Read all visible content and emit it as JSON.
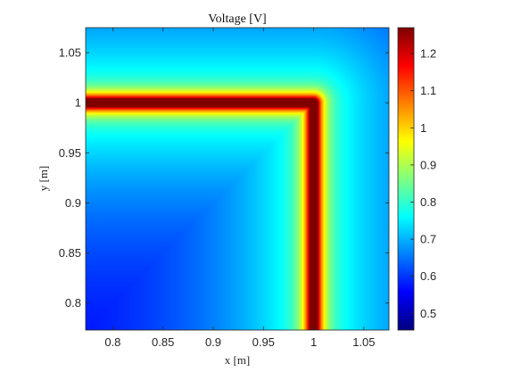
{
  "chart_data": {
    "type": "heatmap",
    "title": "Voltage [V]",
    "xlabel": "x [m]",
    "ylabel": "y [m]",
    "xlim": [
      0.773,
      1.075
    ],
    "ylim": [
      0.773,
      1.075
    ],
    "x_ticks": [
      0.8,
      0.85,
      0.9,
      0.95,
      1,
      1.05
    ],
    "x_tick_labels": [
      "0.8",
      "0.85",
      "0.9",
      "0.95",
      "1",
      "1.05"
    ],
    "y_ticks": [
      0.8,
      0.85,
      0.9,
      0.95,
      1,
      1.05
    ],
    "y_tick_labels": [
      "0.8",
      "0.85",
      "0.9",
      "0.95",
      "1",
      "1.05"
    ],
    "colorbar": {
      "limits": [
        0.455,
        1.27
      ],
      "ticks": [
        0.5,
        0.6,
        0.7,
        0.8,
        0.9,
        1,
        1.1,
        1.2
      ],
      "tick_labels": [
        "0.5",
        "0.6",
        "0.7",
        "0.8",
        "0.9",
        "1",
        "1.1",
        "1.2"
      ],
      "colormap": "jet"
    },
    "field": {
      "description_of_pattern": "L-shaped conductor along y=1 (x<=1) and x=1 (y<=1) at peak voltage, decaying with distance",
      "conductor_corner": [
        1.0,
        1.0
      ],
      "peak_value": 1.27,
      "near_value": 0.82,
      "far_value": 0.53,
      "core_half_width": 0.004,
      "decay_length": 0.035,
      "far_decay_length": 0.12
    },
    "grid": false,
    "legend": "none"
  }
}
